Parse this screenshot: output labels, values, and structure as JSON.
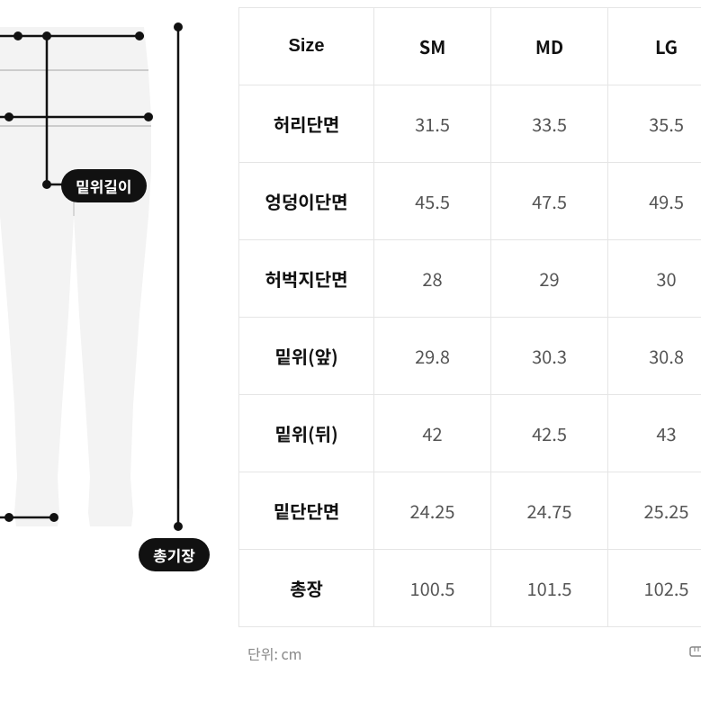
{
  "diagram": {
    "labels": {
      "rise": "밑위길이",
      "total_length": "총기장"
    },
    "stroke_color": "#111111",
    "fill_color": "#f0f0f0",
    "line_color": "#111111"
  },
  "table": {
    "header_label": "Size",
    "columns": [
      "SM",
      "MD",
      "LG"
    ],
    "rows": [
      {
        "label": "허리단면",
        "values": [
          "31.5",
          "33.5",
          "35.5"
        ]
      },
      {
        "label": "엉덩이단면",
        "values": [
          "45.5",
          "47.5",
          "49.5"
        ]
      },
      {
        "label": "허벅지단면",
        "values": [
          "28",
          "29",
          "30"
        ]
      },
      {
        "label": "밑위(앞)",
        "values": [
          "29.8",
          "30.3",
          "30.8"
        ]
      },
      {
        "label": "밑위(뒤)",
        "values": [
          "42",
          "42.5",
          "43"
        ]
      },
      {
        "label": "밑단단면",
        "values": [
          "24.25",
          "24.75",
          "25.25"
        ]
      },
      {
        "label": "총장",
        "values": [
          "100.5",
          "101.5",
          "102.5"
        ]
      }
    ],
    "border_color": "#e5e5e5",
    "header_fontsize": 20,
    "cell_fontsize": 20,
    "header_color": "#111111",
    "cell_color": "#555555"
  },
  "footer": {
    "unit_label": "단위: cm",
    "ruler_glyph": "📏"
  }
}
